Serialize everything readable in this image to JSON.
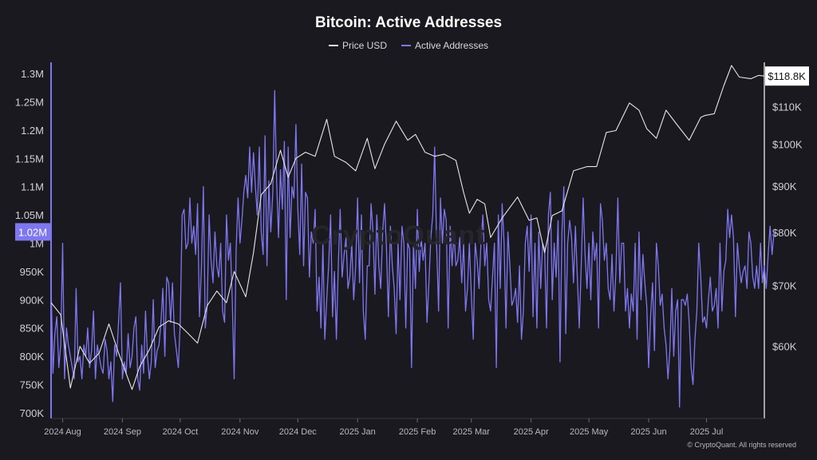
{
  "chart_data": {
    "type": "line",
    "title": "Bitcoin: Active Addresses",
    "x_tick_labels": [
      "2024 Aug",
      "2024 Sep",
      "2024 Oct",
      "2024 Nov",
      "2024 Dec",
      "2025 Jan",
      "2025 Feb",
      "2025 Mar",
      "2025 Apr",
      "2025 May",
      "2025 Jun",
      "2025 Jul"
    ],
    "x_range": [
      "2024-07-26",
      "2025-07-31"
    ],
    "left_axis": {
      "ticks": [
        "1.3M",
        "1.25M",
        "1.2M",
        "1.15M",
        "1.1M",
        "1.05M",
        "1M",
        "950K",
        "900K",
        "850K",
        "800K",
        "750K",
        "700K"
      ],
      "ylim": [
        690000,
        1320000
      ],
      "current_value_label": "1.02M"
    },
    "right_axis": {
      "scale": "log",
      "ticks": [
        "$110K",
        "$100K",
        "$90K",
        "$80K",
        "$70K",
        "$60K"
      ],
      "ylim": [
        50000,
        123000
      ],
      "current_value_label": "$118.8K"
    },
    "series": [
      {
        "name": "Price USD",
        "axis": "right",
        "color": "#e6e6e6",
        "points": [
          [
            "2024-07-26",
            67000
          ],
          [
            "2024-07-31",
            65000
          ],
          [
            "2024-08-05",
            54000
          ],
          [
            "2024-08-10",
            60000
          ],
          [
            "2024-08-15",
            57500
          ],
          [
            "2024-08-20",
            59000
          ],
          [
            "2024-08-25",
            63500
          ],
          [
            "2024-08-30",
            59000
          ],
          [
            "2024-09-06",
            53800
          ],
          [
            "2024-09-10",
            57000
          ],
          [
            "2024-09-15",
            59500
          ],
          [
            "2024-09-20",
            63000
          ],
          [
            "2024-09-25",
            64000
          ],
          [
            "2024-09-30",
            63500
          ],
          [
            "2024-10-05",
            62000
          ],
          [
            "2024-10-10",
            60500
          ],
          [
            "2024-10-15",
            66500
          ],
          [
            "2024-10-20",
            69000
          ],
          [
            "2024-10-25",
            67000
          ],
          [
            "2024-10-29",
            72500
          ],
          [
            "2024-11-04",
            68000
          ],
          [
            "2024-11-08",
            76000
          ],
          [
            "2024-11-12",
            88000
          ],
          [
            "2024-11-17",
            90500
          ],
          [
            "2024-11-22",
            98500
          ],
          [
            "2024-11-26",
            92000
          ],
          [
            "2024-11-30",
            96500
          ],
          [
            "2024-12-05",
            98000
          ],
          [
            "2024-12-10",
            97000
          ],
          [
            "2024-12-16",
            106500
          ],
          [
            "2024-12-20",
            97000
          ],
          [
            "2024-12-26",
            95500
          ],
          [
            "2024-12-31",
            93500
          ],
          [
            "2025-01-06",
            101500
          ],
          [
            "2025-01-10",
            94000
          ],
          [
            "2025-01-15",
            100000
          ],
          [
            "2025-01-21",
            106000
          ],
          [
            "2025-01-27",
            101000
          ],
          [
            "2025-01-31",
            102500
          ],
          [
            "2025-02-05",
            98000
          ],
          [
            "2025-02-10",
            97000
          ],
          [
            "2025-02-15",
            97500
          ],
          [
            "2025-02-21",
            96000
          ],
          [
            "2025-02-25",
            88500
          ],
          [
            "2025-02-28",
            84000
          ],
          [
            "2025-03-04",
            87000
          ],
          [
            "2025-03-08",
            86000
          ],
          [
            "2025-03-11",
            79000
          ],
          [
            "2025-03-17",
            83000
          ],
          [
            "2025-03-25",
            87500
          ],
          [
            "2025-03-31",
            82500
          ],
          [
            "2025-04-04",
            83000
          ],
          [
            "2025-04-08",
            76000
          ],
          [
            "2025-04-12",
            83500
          ],
          [
            "2025-04-17",
            84500
          ],
          [
            "2025-04-23",
            93500
          ],
          [
            "2025-04-30",
            94500
          ],
          [
            "2025-05-05",
            94500
          ],
          [
            "2025-05-10",
            103000
          ],
          [
            "2025-05-15",
            103500
          ],
          [
            "2025-05-22",
            111000
          ],
          [
            "2025-05-27",
            109000
          ],
          [
            "2025-05-31",
            104000
          ],
          [
            "2025-06-05",
            101500
          ],
          [
            "2025-06-10",
            109000
          ],
          [
            "2025-06-15",
            105500
          ],
          [
            "2025-06-22",
            101000
          ],
          [
            "2025-06-28",
            107000
          ],
          [
            "2025-06-30",
            107500
          ],
          [
            "2025-07-05",
            108000
          ],
          [
            "2025-07-10",
            116000
          ],
          [
            "2025-07-14",
            122000
          ],
          [
            "2025-07-18",
            118500
          ],
          [
            "2025-07-24",
            118000
          ],
          [
            "2025-07-28",
            119000
          ],
          [
            "2025-07-31",
            118800
          ]
        ]
      },
      {
        "name": "Active Addresses",
        "axis": "left",
        "color": "#7f77f0",
        "start_date": "2024-07-26",
        "step_days": 1,
        "values": [
          930000,
          770000,
          840000,
          870000,
          780000,
          820000,
          1000000,
          760000,
          850000,
          820000,
          800000,
          780000,
          760000,
          920000,
          790000,
          800000,
          760000,
          820000,
          800000,
          850000,
          780000,
          810000,
          880000,
          760000,
          820000,
          800000,
          780000,
          770000,
          830000,
          810000,
          760000,
          790000,
          720000,
          820000,
          800000,
          860000,
          930000,
          760000,
          790000,
          770000,
          840000,
          780000,
          800000,
          850000,
          870000,
          760000,
          740000,
          820000,
          770000,
          880000,
          800000,
          760000,
          790000,
          900000,
          780000,
          810000,
          820000,
          860000,
          920000,
          800000,
          940000,
          930000,
          860000,
          930000,
          840000,
          810000,
          780000,
          860000,
          1050000,
          1060000,
          990000,
          1000000,
          1080000,
          1000000,
          1030000,
          980000,
          1070000,
          870000,
          960000,
          1100000,
          850000,
          890000,
          1050000,
          970000,
          930000,
          1020000,
          960000,
          940000,
          1000000,
          880000,
          860000,
          1050000,
          970000,
          1000000,
          900000,
          760000,
          990000,
          1080000,
          1000000,
          1040000,
          1090000,
          1120000,
          1080000,
          1170000,
          1090000,
          1160000,
          1100000,
          1050000,
          1170000,
          1020000,
          980000,
          1190000,
          960000,
          1110000,
          1020000,
          1090000,
          1270000,
          1110000,
          1010000,
          1130000,
          1060000,
          1180000,
          900000,
          1170000,
          1010000,
          1100000,
          1080000,
          1210000,
          1060000,
          980000,
          1140000,
          960000,
          1090000,
          1080000,
          940000,
          1020000,
          1000000,
          1060000,
          880000,
          940000,
          850000,
          1000000,
          830000,
          900000,
          960000,
          1050000,
          870000,
          950000,
          830000,
          960000,
          1060000,
          940000,
          980000,
          1010000,
          920000,
          940000,
          1000000,
          900000,
          960000,
          1080000,
          930000,
          1050000,
          880000,
          830000,
          960000,
          960000,
          1070000,
          1020000,
          910000,
          1050000,
          960000,
          920000,
          1020000,
          1070000,
          990000,
          870000,
          1030000,
          960000,
          920000,
          840000,
          1000000,
          900000,
          1030000,
          1000000,
          850000,
          1000000,
          990000,
          780000,
          1000000,
          920000,
          1060000,
          950000,
          1010000,
          970000,
          1000000,
          860000,
          930000,
          1010000,
          1050000,
          1170000,
          1000000,
          880000,
          1080000,
          1000000,
          1060000,
          1040000,
          850000,
          1030000,
          960000,
          1020000,
          960000,
          970000,
          1010000,
          930000,
          1000000,
          880000,
          920000,
          1000000,
          910000,
          830000,
          1000000,
          970000,
          920000,
          1000000,
          1050000,
          960000,
          1000000,
          900000,
          880000,
          940000,
          1000000,
          780000,
          1050000,
          920000,
          1070000,
          1000000,
          850000,
          1020000,
          960000,
          890000,
          900000,
          920000,
          860000,
          960000,
          830000,
          880000,
          1000000,
          1030000,
          950000,
          1050000,
          870000,
          1000000,
          850000,
          1020000,
          920000,
          1000000,
          990000,
          850000,
          1050000,
          1090000,
          900000,
          1000000,
          940000,
          1040000,
          790000,
          1020000,
          1100000,
          840000,
          1000000,
          1040000,
          1010000,
          930000,
          1030000,
          940000,
          850000,
          960000,
          1080000,
          980000,
          920000,
          1000000,
          900000,
          1020000,
          970000,
          1000000,
          850000,
          1070000,
          1040000,
          970000,
          1000000,
          920000,
          900000,
          980000,
          880000,
          950000,
          1080000,
          930000,
          1000000,
          1000000,
          880000,
          920000,
          850000,
          910000,
          880000,
          1000000,
          830000,
          1020000,
          900000,
          980000,
          930000,
          890000,
          780000,
          870000,
          930000,
          810000,
          1000000,
          960000,
          890000,
          910000,
          850000,
          820000,
          760000,
          810000,
          920000,
          800000,
          880000,
          900000,
          710000,
          900000,
          900000,
          890000,
          910000,
          860000,
          780000,
          750000,
          830000,
          880000,
          1000000,
          940000,
          860000,
          870000,
          850000,
          900000,
          940000,
          880000,
          890000,
          920000,
          850000,
          1000000,
          880000,
          950000,
          970000,
          1060000,
          1010000,
          1050000,
          1010000,
          870000,
          1000000,
          960000,
          930000,
          950000,
          960000,
          920000,
          1020000,
          1000000,
          940000,
          920000,
          960000,
          920000,
          1000000,
          930000,
          960000,
          920000,
          980000,
          1030000,
          980000,
          1020000
        ]
      }
    ],
    "grid": false,
    "legend_position": "top-center"
  },
  "watermark": "CryptoQuant",
  "credit": "© CryptoQuant. All rights reserved"
}
